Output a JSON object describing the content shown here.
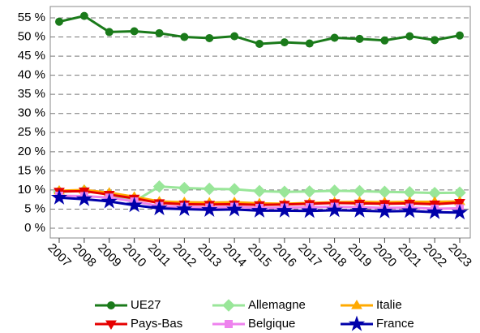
{
  "chart_data": {
    "type": "line",
    "categories": [
      "2007",
      "2008",
      "2009",
      "2010",
      "2011",
      "2012",
      "2013",
      "2014",
      "2015",
      "2016",
      "2017",
      "2018",
      "2019",
      "2020",
      "2021",
      "2022",
      "2023"
    ],
    "series": [
      {
        "name": "UE27",
        "color": "#1a7a1a",
        "marker": "circle",
        "values": [
          54,
          55.5,
          51.3,
          51.5,
          51,
          50,
          49.7,
          50.2,
          48.2,
          48.6,
          48.3,
          49.8,
          49.5,
          49.1,
          50.2,
          49.2,
          50.4
        ]
      },
      {
        "name": "Allemagne",
        "color": "#99e699",
        "marker": "diamond",
        "values": [
          9.5,
          9.8,
          8.9,
          7,
          10.9,
          10.5,
          10.3,
          10.2,
          9.7,
          9.5,
          9.6,
          9.8,
          9.7,
          9.5,
          9.4,
          9.2,
          9.3
        ]
      },
      {
        "name": "Italie",
        "color": "#ffaa00",
        "marker": "triangle-up",
        "values": [
          9.8,
          10,
          9.3,
          8.2,
          7,
          6.8,
          6.7,
          6.8,
          6.5,
          6.4,
          6.6,
          6.8,
          6.9,
          6.8,
          6.9,
          6.9,
          7
        ]
      },
      {
        "name": "Pays-Bas",
        "color": "#e60000",
        "marker": "triangle-down",
        "values": [
          9.6,
          9.7,
          8.8,
          7.8,
          6.6,
          6.3,
          6.2,
          6.3,
          6.1,
          6.2,
          6.4,
          6.6,
          6.5,
          6.4,
          6.5,
          6.3,
          6.7
        ]
      },
      {
        "name": "Belgique",
        "color": "#ee82ee",
        "marker": "square",
        "values": [
          8.5,
          8.4,
          8,
          7,
          5.8,
          5.6,
          5.4,
          5.6,
          5.3,
          5.4,
          5.5,
          5.6,
          5.5,
          5.3,
          5.4,
          5.1,
          5.2
        ]
      },
      {
        "name": "France",
        "color": "#0000aa",
        "marker": "star",
        "values": [
          8,
          7.6,
          7,
          6,
          5.2,
          5,
          4.8,
          4.9,
          4.6,
          4.6,
          4.5,
          4.7,
          4.6,
          4.4,
          4.5,
          4.2,
          4.1
        ]
      }
    ],
    "ylim": [
      0,
      55
    ],
    "yticks": [
      {
        "value": 0,
        "label": "0 %"
      },
      {
        "value": 5,
        "label": "5 %"
      },
      {
        "value": 10,
        "label": "10 %"
      },
      {
        "value": 15,
        "label": "15 %"
      },
      {
        "value": 20,
        "label": "20 %"
      },
      {
        "value": 25,
        "label": "25 %"
      },
      {
        "value": 30,
        "label": "30 %"
      },
      {
        "value": 35,
        "label": "35 %"
      },
      {
        "value": 40,
        "label": "40 %"
      },
      {
        "value": 45,
        "label": "45 %"
      },
      {
        "value": 50,
        "label": "50 %"
      },
      {
        "value": 55,
        "label": "55 %"
      }
    ],
    "grid": true,
    "legend": "bottom"
  }
}
